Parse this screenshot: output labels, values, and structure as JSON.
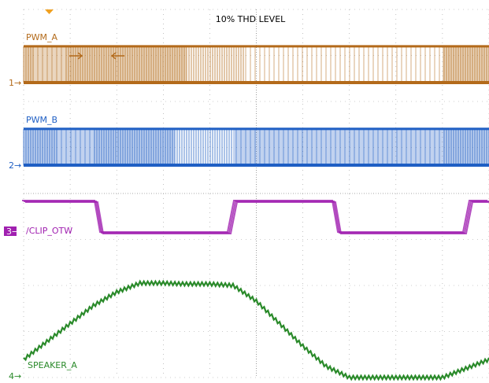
{
  "chart_data": {
    "type": "line",
    "title": "10% THD LEVEL",
    "xlabel": "",
    "ylabel": "",
    "grid": true,
    "x_divisions": 10,
    "y_divisions": 8,
    "channels": [
      {
        "name": "PWM_A",
        "marker": "1",
        "color": "#b36a1a",
        "kind": "pwm",
        "level_low_div": 0.2,
        "level_high_div": 2.05,
        "dense_ranges": [
          [
            0.0,
            3.5
          ],
          [
            9.0,
            10.0
          ]
        ],
        "edge_dense_ranges": [
          [
            0.0,
            0.25
          ],
          [
            3.5,
            4.75
          ],
          [
            9.0,
            9.5
          ]
        ],
        "sparse_ranges": [
          [
            0.25,
            0.9
          ],
          [
            4.75,
            9.0
          ]
        ]
      },
      {
        "name": "PWM_B",
        "marker": "2",
        "color": "#1f5fc4",
        "kind": "pwm",
        "level_low_div": 0.2,
        "level_high_div": 2.05,
        "dense_ranges": [
          [
            0.0,
            3.25
          ],
          [
            4.5,
            10.0
          ]
        ],
        "edge_dense_ranges": [
          [
            0.0,
            0.25
          ],
          [
            3.25,
            4.5
          ],
          [
            9.0,
            9.5
          ]
        ],
        "sparse_ranges": [
          [
            0.75,
            1.5
          ],
          [
            4.5,
            9.0
          ]
        ]
      },
      {
        "name": "/CLIP_OTW",
        "marker": "3",
        "color": "#a020b0",
        "kind": "digital",
        "high_div": 1.25,
        "low_div": 0.0,
        "low_ranges": [
          [
            3.25,
            8.9
          ],
          [
            13.7,
            18.8
          ]
        ],
        "x_units": "time_divs_x2"
      },
      {
        "name": "SPEAKER_A",
        "marker": "4",
        "color": "#2a8a2a",
        "kind": "analog",
        "x": [
          0,
          1,
          2,
          3,
          4,
          5,
          6,
          7,
          8,
          9,
          10,
          11,
          12,
          13,
          14,
          15,
          16,
          17,
          18,
          19,
          20
        ],
        "y": [
          0.3,
          0.7,
          1.1,
          1.5,
          1.8,
          2.0,
          2.0,
          1.98,
          1.98,
          1.95,
          1.6,
          1.1,
          0.6,
          0.15,
          -0.1,
          -0.1,
          -0.1,
          -0.1,
          -0.1,
          0.1,
          0.3
        ]
      }
    ]
  }
}
